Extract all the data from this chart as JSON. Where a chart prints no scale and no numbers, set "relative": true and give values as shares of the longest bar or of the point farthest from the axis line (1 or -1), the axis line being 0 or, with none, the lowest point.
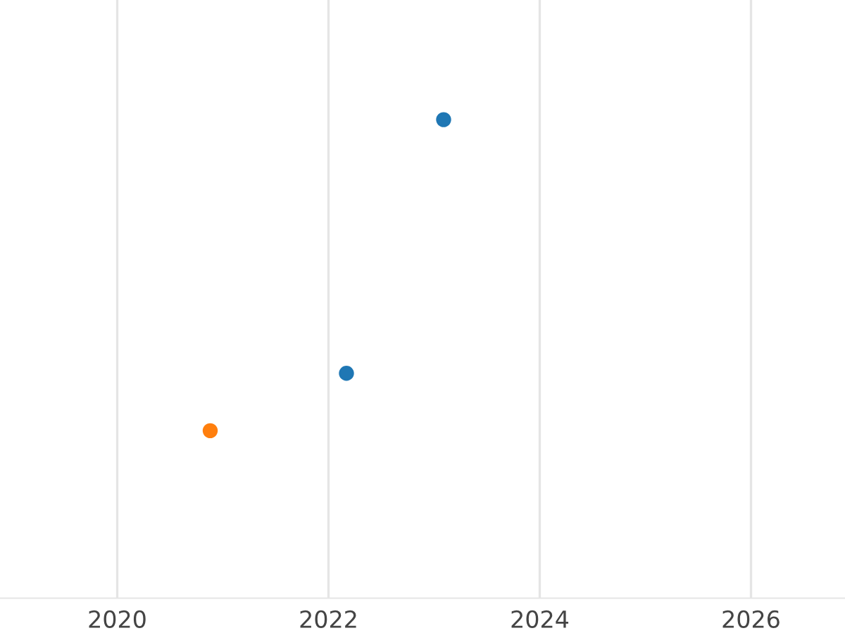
{
  "chart_data": {
    "type": "scatter",
    "relative": true,
    "xlim": [
      2018.89,
      2026.89
    ],
    "xticks": [
      2020,
      2022,
      2024,
      2026
    ],
    "tick_labels": "x",
    "grid": "x",
    "marker": "circle",
    "series": [
      {
        "color": "#1f77b4",
        "x": [
          2022.17,
          2023.09
        ],
        "values": [
          0.47,
          1
        ]
      },
      {
        "color": "#ff7f0e",
        "x": [
          2020.88
        ],
        "values": [
          0.35
        ]
      }
    ]
  }
}
